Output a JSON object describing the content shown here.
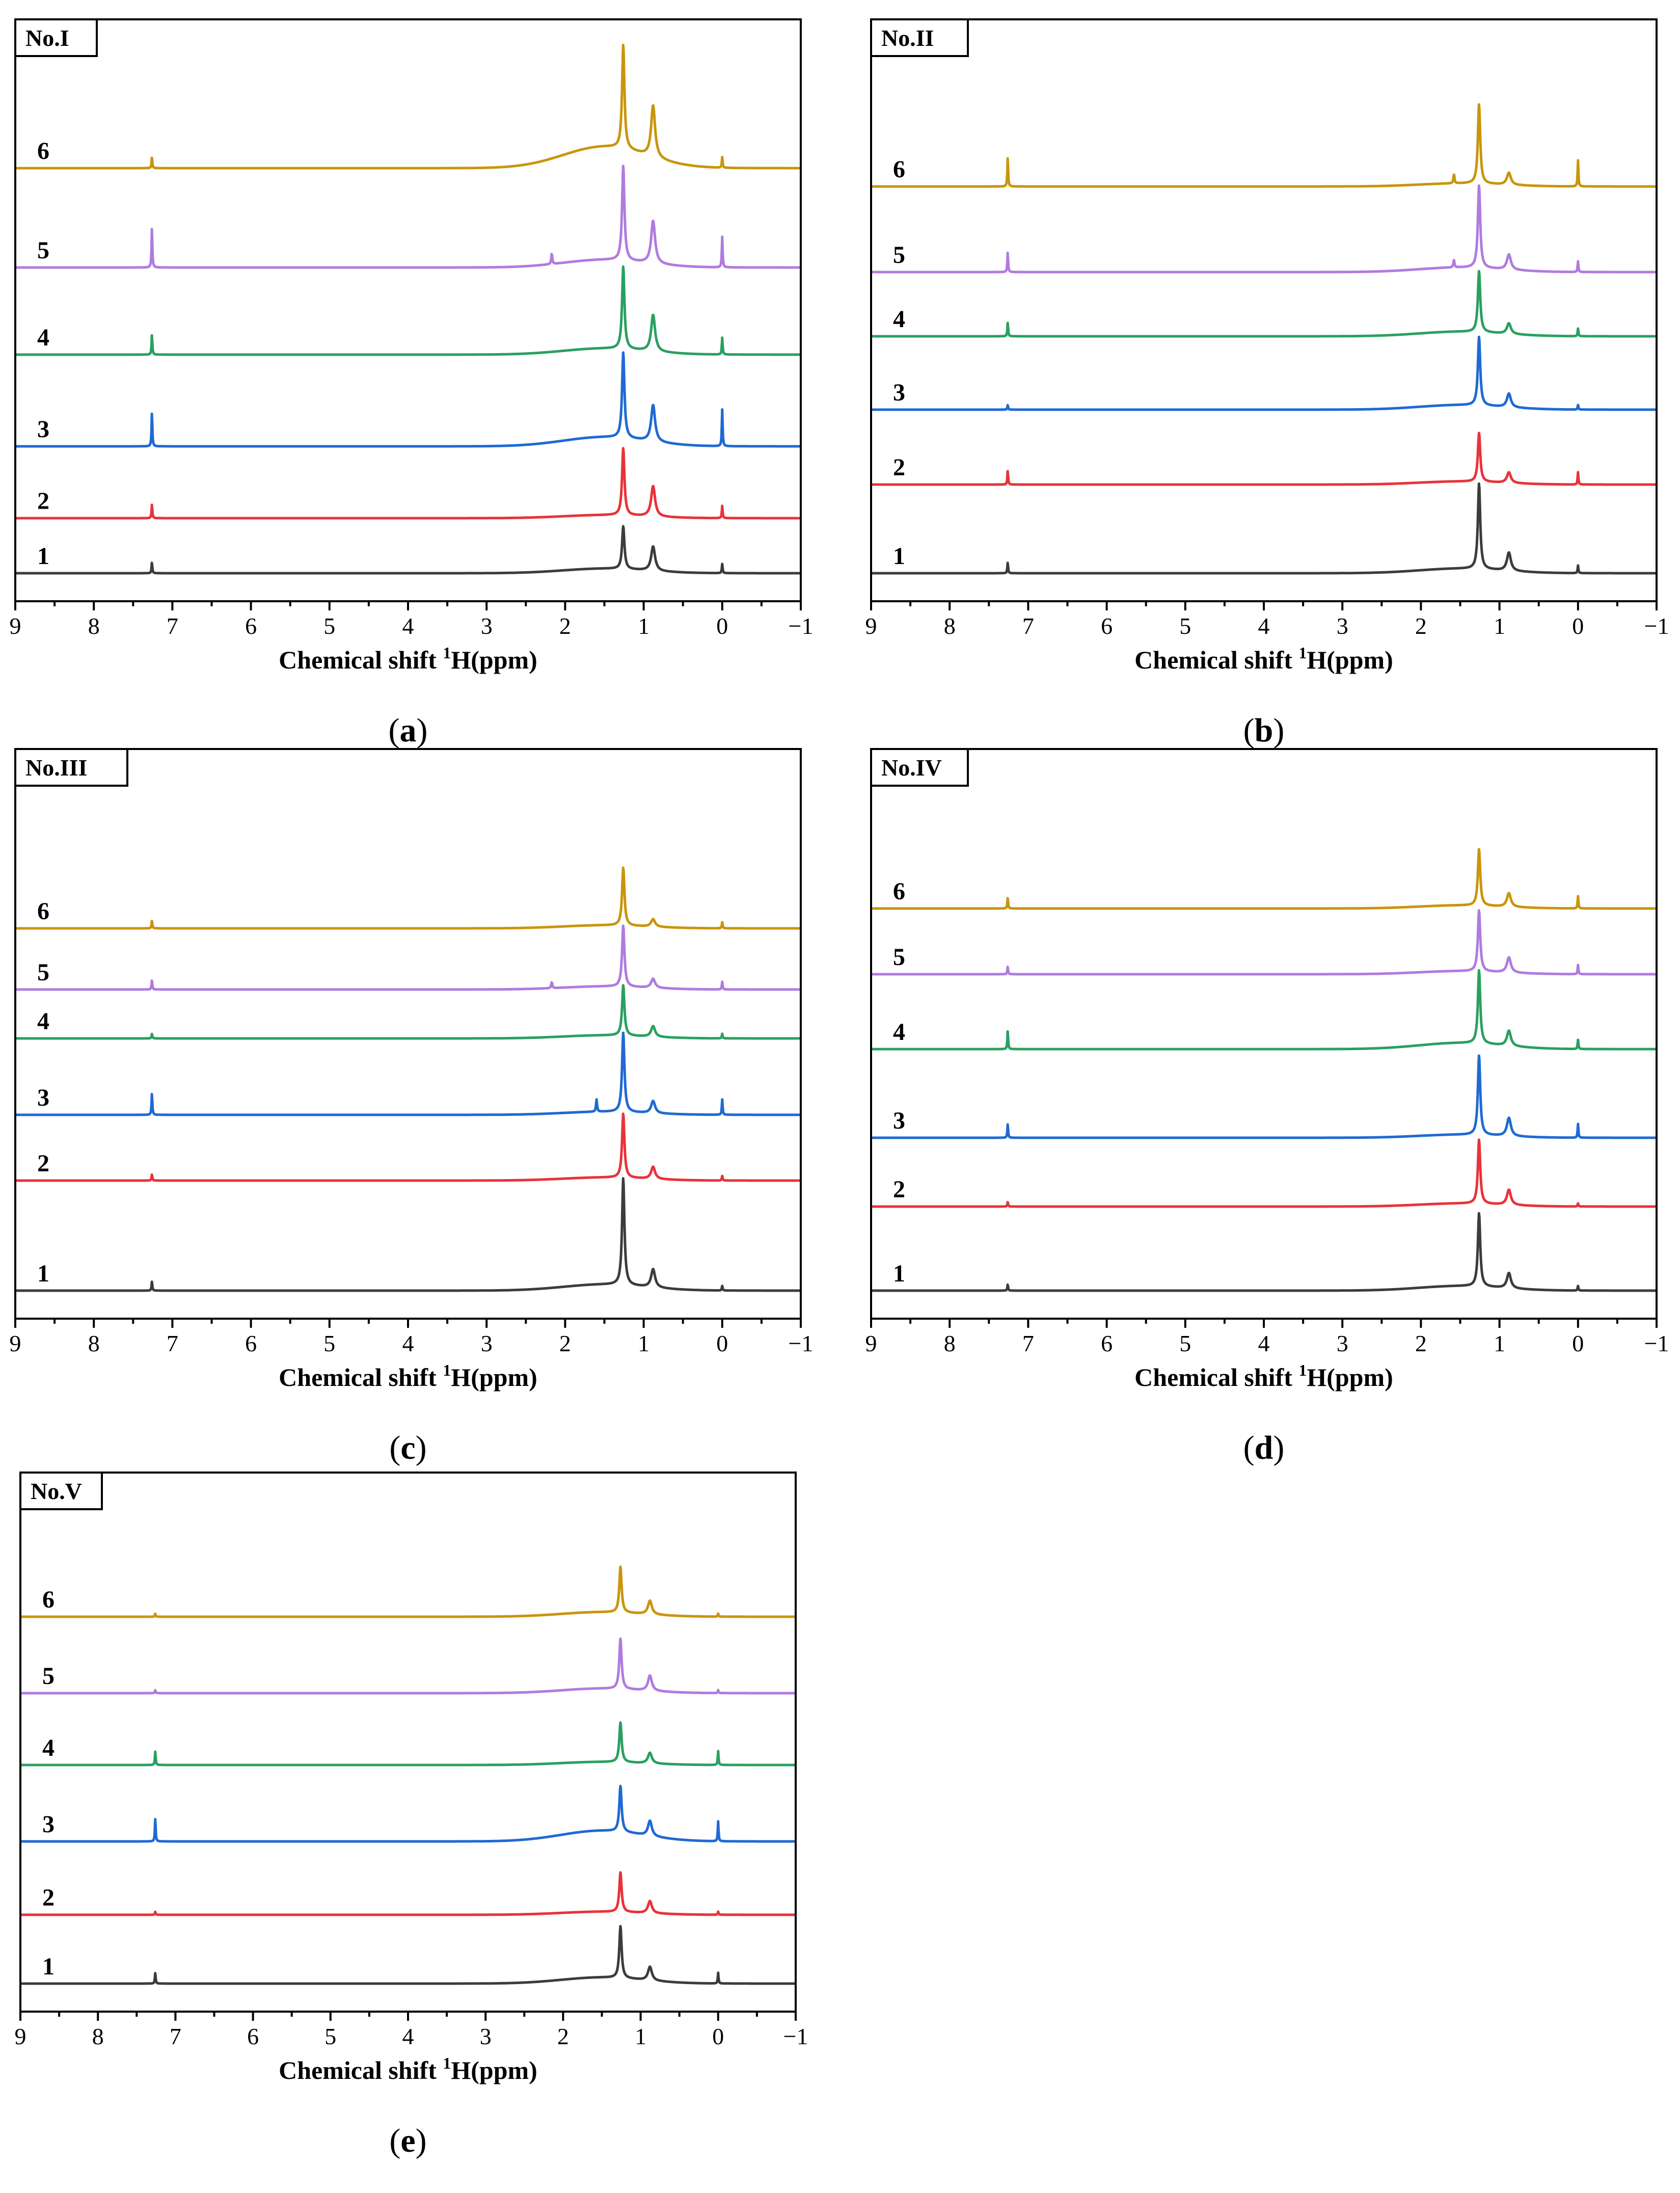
{
  "chart_data": [
    {
      "type": "line",
      "panel": "a",
      "caption_letter": "a",
      "title": "No.I",
      "xlabel_main": "Chemical shift ",
      "xlabel_sup": "1",
      "xlabel_tail": "H(ppm)",
      "xlim": [
        9,
        -1
      ],
      "xticks": [
        "9",
        "8",
        "7",
        "6",
        "5",
        "4",
        "3",
        "2",
        "1",
        "0",
        "−1"
      ],
      "series": [
        {
          "name": "1",
          "color": "#3c3c3c",
          "offset": 0,
          "broad": 0.03,
          "h_ch2": 0.28,
          "h_ch3": 0.16,
          "h_chcl3": 0.07,
          "h_tms": 0.06,
          "extra": []
        },
        {
          "name": "2",
          "color": "#e8333a",
          "offset": 0.36,
          "broad": 0.02,
          "h_ch2": 0.44,
          "h_ch3": 0.2,
          "h_chcl3": 0.09,
          "h_tms": 0.08,
          "extra": []
        },
        {
          "name": "3",
          "color": "#1f6ad3",
          "offset": 0.83,
          "broad": 0.06,
          "h_ch2": 0.56,
          "h_ch3": 0.24,
          "h_chcl3": 0.22,
          "h_tms": 0.24,
          "extra": []
        },
        {
          "name": "4",
          "color": "#2aa060",
          "offset": 1.43,
          "broad": 0.04,
          "h_ch2": 0.54,
          "h_ch3": 0.24,
          "h_chcl3": 0.13,
          "h_tms": 0.11,
          "extra": []
        },
        {
          "name": "5",
          "color": "#b07be0",
          "offset": 2.0,
          "broad": 0.05,
          "h_ch2": 0.62,
          "h_ch3": 0.28,
          "h_chcl3": 0.26,
          "h_tms": 0.2,
          "extra": [
            {
              "x": 2.17,
              "h": 0.07
            }
          ]
        },
        {
          "name": "6",
          "color": "#c9950c",
          "offset": 2.65,
          "broad": 0.14,
          "h_ch2": 0.68,
          "h_ch3": 0.34,
          "h_chcl3": 0.07,
          "h_tms": 0.07,
          "extra": []
        }
      ]
    },
    {
      "type": "line",
      "panel": "b",
      "caption_letter": "b",
      "title": "No.II",
      "xlabel_main": "Chemical shift ",
      "xlabel_sup": "1",
      "xlabel_tail": "H(ppm)",
      "xlim": [
        9,
        -1
      ],
      "xticks": [
        "9",
        "8",
        "7",
        "6",
        "5",
        "4",
        "3",
        "2",
        "1",
        "0",
        "−1"
      ],
      "series": [
        {
          "name": "1",
          "color": "#3c3c3c",
          "offset": 0,
          "broad": 0.03,
          "h_ch2": 0.56,
          "h_ch3": 0.12,
          "h_chcl3": 0.07,
          "h_tms": 0.05,
          "extra": []
        },
        {
          "name": "2",
          "color": "#e8333a",
          "offset": 0.58,
          "broad": 0.02,
          "h_ch2": 0.32,
          "h_ch3": 0.07,
          "h_chcl3": 0.09,
          "h_tms": 0.08,
          "extra": []
        },
        {
          "name": "3",
          "color": "#1f6ad3",
          "offset": 1.07,
          "broad": 0.03,
          "h_ch2": 0.45,
          "h_ch3": 0.09,
          "h_chcl3": 0.03,
          "h_tms": 0.03,
          "extra": []
        },
        {
          "name": "4",
          "color": "#2aa060",
          "offset": 1.55,
          "broad": 0.03,
          "h_ch2": 0.4,
          "h_ch3": 0.07,
          "h_chcl3": 0.09,
          "h_tms": 0.05,
          "extra": []
        },
        {
          "name": "5",
          "color": "#b07be0",
          "offset": 1.97,
          "broad": 0.03,
          "h_ch2": 0.54,
          "h_ch3": 0.1,
          "h_chcl3": 0.13,
          "h_tms": 0.07,
          "extra": [
            {
              "x": 1.58,
              "h": 0.05
            }
          ]
        },
        {
          "name": "6",
          "color": "#c9950c",
          "offset": 2.53,
          "broad": 0.02,
          "h_ch2": 0.52,
          "h_ch3": 0.08,
          "h_chcl3": 0.19,
          "h_tms": 0.17,
          "extra": [
            {
              "x": 1.58,
              "h": 0.06
            }
          ]
        }
      ]
    },
    {
      "type": "line",
      "panel": "c",
      "caption_letter": "c",
      "title": "No.III",
      "xlabel_main": "Chemical shift ",
      "xlabel_sup": "1",
      "xlabel_tail": "H(ppm)",
      "xlim": [
        9,
        -1
      ],
      "xticks": [
        "9",
        "8",
        "7",
        "6",
        "5",
        "4",
        "3",
        "2",
        "1",
        "0",
        "−1"
      ],
      "series": [
        {
          "name": "1",
          "color": "#3c3c3c",
          "offset": 0,
          "broad": 0.04,
          "h_ch2": 0.7,
          "h_ch3": 0.12,
          "h_chcl3": 0.06,
          "h_tms": 0.03,
          "extra": []
        },
        {
          "name": "2",
          "color": "#e8333a",
          "offset": 0.72,
          "broad": 0.02,
          "h_ch2": 0.42,
          "h_ch3": 0.08,
          "h_chcl3": 0.04,
          "h_tms": 0.03,
          "extra": []
        },
        {
          "name": "3",
          "color": "#1f6ad3",
          "offset": 1.15,
          "broad": 0.02,
          "h_ch2": 0.52,
          "h_ch3": 0.08,
          "h_chcl3": 0.14,
          "h_tms": 0.1,
          "extra": [
            {
              "x": 1.6,
              "h": 0.08
            }
          ]
        },
        {
          "name": "4",
          "color": "#2aa060",
          "offset": 1.65,
          "broad": 0.02,
          "h_ch2": 0.33,
          "h_ch3": 0.07,
          "h_chcl3": 0.03,
          "h_tms": 0.03,
          "extra": []
        },
        {
          "name": "5",
          "color": "#b07be0",
          "offset": 1.97,
          "broad": 0.02,
          "h_ch2": 0.4,
          "h_ch3": 0.06,
          "h_chcl3": 0.06,
          "h_tms": 0.05,
          "extra": [
            {
              "x": 2.17,
              "h": 0.04
            }
          ]
        },
        {
          "name": "6",
          "color": "#c9950c",
          "offset": 2.37,
          "broad": 0.02,
          "h_ch2": 0.38,
          "h_ch3": 0.05,
          "h_chcl3": 0.05,
          "h_tms": 0.04,
          "extra": []
        }
      ]
    },
    {
      "type": "line",
      "panel": "d",
      "caption_letter": "d",
      "title": "No.IV",
      "xlabel_main": "Chemical shift ",
      "xlabel_sup": "1",
      "xlabel_tail": "H(ppm)",
      "xlim": [
        9,
        -1
      ],
      "xticks": [
        "9",
        "8",
        "7",
        "6",
        "5",
        "4",
        "3",
        "2",
        "1",
        "0",
        "−1"
      ],
      "series": [
        {
          "name": "1",
          "color": "#3c3c3c",
          "offset": 0,
          "broad": 0.03,
          "h_ch2": 0.48,
          "h_ch3": 0.1,
          "h_chcl3": 0.04,
          "h_tms": 0.03,
          "extra": []
        },
        {
          "name": "2",
          "color": "#e8333a",
          "offset": 0.55,
          "broad": 0.02,
          "h_ch2": 0.42,
          "h_ch3": 0.1,
          "h_chcl3": 0.03,
          "h_tms": 0.02,
          "extra": []
        },
        {
          "name": "3",
          "color": "#1f6ad3",
          "offset": 1.0,
          "broad": 0.02,
          "h_ch2": 0.52,
          "h_ch3": 0.12,
          "h_chcl3": 0.09,
          "h_tms": 0.09,
          "extra": []
        },
        {
          "name": "4",
          "color": "#2aa060",
          "offset": 1.58,
          "broad": 0.04,
          "h_ch2": 0.48,
          "h_ch3": 0.1,
          "h_chcl3": 0.12,
          "h_tms": 0.06,
          "extra": []
        },
        {
          "name": "5",
          "color": "#b07be0",
          "offset": 2.07,
          "broad": 0.02,
          "h_ch2": 0.4,
          "h_ch3": 0.1,
          "h_chcl3": 0.05,
          "h_tms": 0.06,
          "extra": []
        },
        {
          "name": "6",
          "color": "#c9950c",
          "offset": 2.5,
          "broad": 0.02,
          "h_ch2": 0.37,
          "h_ch3": 0.09,
          "h_chcl3": 0.07,
          "h_tms": 0.08,
          "extra": []
        }
      ]
    },
    {
      "type": "line",
      "panel": "e",
      "caption_letter": "e",
      "title": "No.V",
      "xlabel_main": "Chemical shift ",
      "xlabel_sup": "1",
      "xlabel_tail": "H(ppm)",
      "xlim": [
        9,
        -1
      ],
      "xticks": [
        "9",
        "8",
        "7",
        "6",
        "5",
        "4",
        "3",
        "2",
        "1",
        "0",
        "−1"
      ],
      "series": [
        {
          "name": "1",
          "color": "#3c3c3c",
          "offset": 0,
          "broad": 0.04,
          "h_ch2": 0.34,
          "h_ch3": 0.09,
          "h_chcl3": 0.07,
          "h_tms": 0.07,
          "extra": []
        },
        {
          "name": "2",
          "color": "#e8333a",
          "offset": 0.45,
          "broad": 0.02,
          "h_ch2": 0.26,
          "h_ch3": 0.08,
          "h_chcl3": 0.02,
          "h_tms": 0.02,
          "extra": []
        },
        {
          "name": "3",
          "color": "#1f6ad3",
          "offset": 0.93,
          "broad": 0.07,
          "h_ch2": 0.3,
          "h_ch3": 0.1,
          "h_chcl3": 0.15,
          "h_tms": 0.13,
          "extra": []
        },
        {
          "name": "4",
          "color": "#2aa060",
          "offset": 1.43,
          "broad": 0.02,
          "h_ch2": 0.26,
          "h_ch3": 0.07,
          "h_chcl3": 0.09,
          "h_tms": 0.09,
          "extra": []
        },
        {
          "name": "5",
          "color": "#b07be0",
          "offset": 1.9,
          "broad": 0.03,
          "h_ch2": 0.33,
          "h_ch3": 0.1,
          "h_chcl3": 0.02,
          "h_tms": 0.02,
          "extra": []
        },
        {
          "name": "6",
          "color": "#c9950c",
          "offset": 2.4,
          "broad": 0.03,
          "h_ch2": 0.3,
          "h_ch3": 0.09,
          "h_chcl3": 0.02,
          "h_tms": 0.02,
          "extra": []
        }
      ]
    }
  ]
}
